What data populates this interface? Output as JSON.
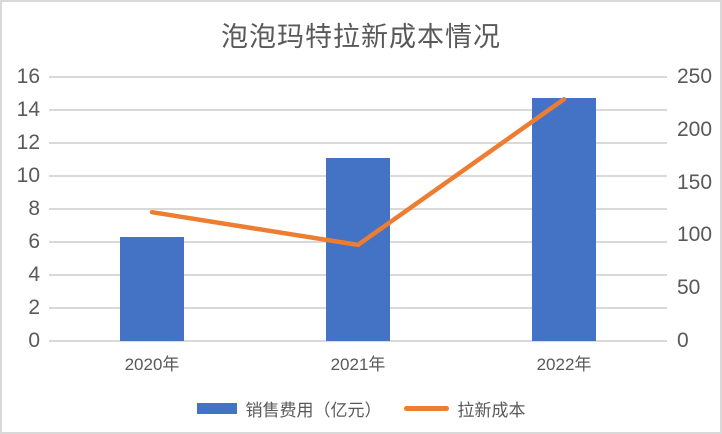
{
  "chart_data": {
    "type": "bar",
    "title": "泡泡玛特拉新成本情况",
    "categories": [
      "2020年",
      "2021年",
      "2022年"
    ],
    "series": [
      {
        "name": "销售费用（亿元）",
        "type": "bar",
        "axis": "left",
        "color": "#4472C4",
        "values": [
          6.3,
          11.1,
          14.7
        ]
      },
      {
        "name": "拉新成本",
        "type": "line",
        "axis": "right",
        "color": "#ED7D31",
        "values": [
          122,
          91,
          229
        ]
      }
    ],
    "left_axis": {
      "min": 0,
      "max": 16,
      "step": 2,
      "tick_labels": [
        "0",
        "2",
        "4",
        "6",
        "8",
        "10",
        "12",
        "14",
        "16"
      ]
    },
    "right_axis": {
      "min": 0,
      "max": 250,
      "step": 50,
      "tick_labels": [
        "0",
        "50",
        "100",
        "150",
        "200",
        "250"
      ]
    },
    "grid": true,
    "legend_position": "bottom",
    "colors": {
      "bar_fill": "#4472C4",
      "line_stroke": "#ED7D31",
      "gridline": "#D9D9D9",
      "text": "#595959",
      "border": "#D9D9D9",
      "background": "#FFFFFF"
    }
  }
}
